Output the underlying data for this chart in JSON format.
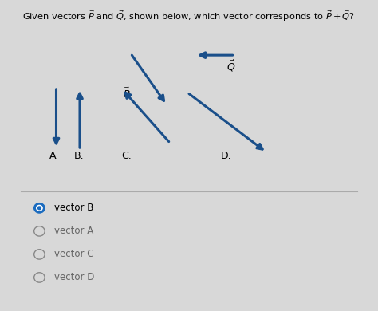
{
  "title": "Given vectors $\\vec{P}$ and $\\vec{Q}$, shown below, which vector corresponds to $\\vec{P} + \\vec{Q}$?",
  "bg_color": "#d8d8d8",
  "arrow_color": "#1a4f8a",
  "options": [
    {
      "text": "vector B",
      "selected": true
    },
    {
      "text": "vector A",
      "selected": false
    },
    {
      "text": "vector C",
      "selected": false
    },
    {
      "text": "vector D",
      "selected": false
    }
  ],
  "radio_color_selected": "#1a6bbf",
  "radio_color_unselected": "#888888"
}
